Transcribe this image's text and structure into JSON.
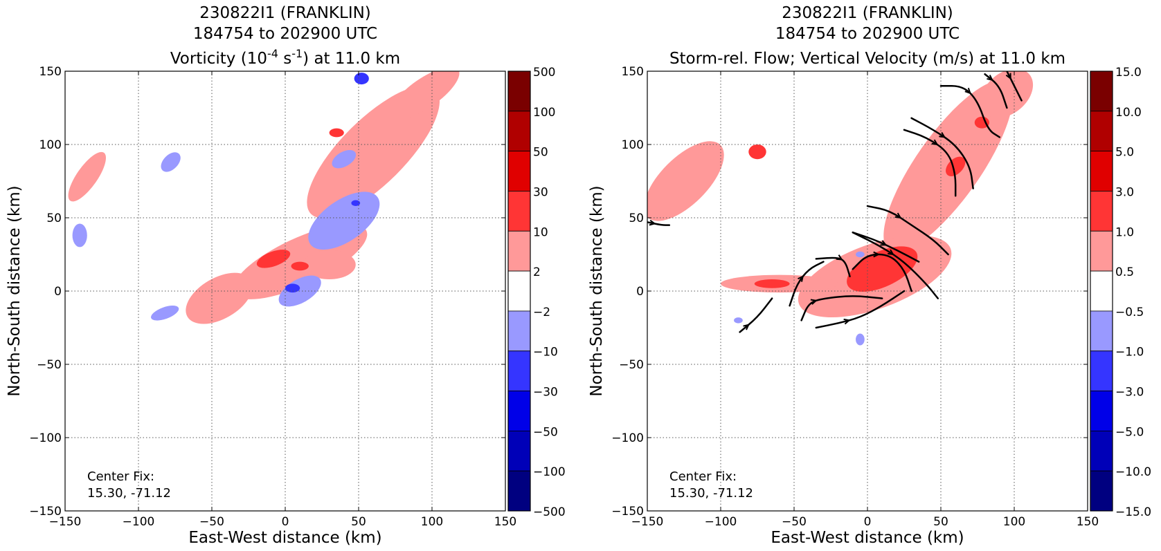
{
  "chart_data": [
    {
      "type": "heatmap",
      "title_lines": [
        "230822I1 (FRANKLIN)",
        "184754 to 202900 UTC"
      ],
      "title_var": "Vorticity (10",
      "title_exp1": "-4",
      "title_unit": " s",
      "title_exp2": "-1",
      "title_tail": ") at 11.0 km",
      "xlabel": "East-West distance (km)",
      "ylabel": "North-South distance (km)",
      "xlim": [
        -150,
        150
      ],
      "ylim": [
        -150,
        150
      ],
      "xticks": [
        "−150",
        "−100",
        "−50",
        "0",
        "50",
        "100",
        "150"
      ],
      "yticks": [
        "−150",
        "−100",
        "−50",
        "0",
        "50",
        "100",
        "150"
      ],
      "grid": true,
      "annotation": [
        "Center Fix:",
        "15.30, -71.12"
      ],
      "colorbar_labels": [
        "500",
        "100",
        "50",
        "30",
        "10",
        "2",
        "−2",
        "−10",
        "−30",
        "−50",
        "−100",
        "−500"
      ],
      "colorbar_colors": [
        "#7a0000",
        "#b00000",
        "#e00000",
        "#ff3535",
        "#ff9999",
        "#ffffff",
        "#9999ff",
        "#3535ff",
        "#0000e8",
        "#0000b8",
        "#000080"
      ],
      "regions": [
        {
          "fill": "#ff9999",
          "cx": 60,
          "cy": 95,
          "rx": 60,
          "ry": 22,
          "rot": -45
        },
        {
          "fill": "#ff9999",
          "cx": 95,
          "cy": 135,
          "rx": 28,
          "ry": 10,
          "rot": -35
        },
        {
          "fill": "#ff9999",
          "cx": 10,
          "cy": 20,
          "rx": 50,
          "ry": 16,
          "rot": -25
        },
        {
          "fill": "#ff9999",
          "cx": -45,
          "cy": -5,
          "rx": 25,
          "ry": 14,
          "rot": -30
        },
        {
          "fill": "#ff9999",
          "cx": -135,
          "cy": 78,
          "rx": 20,
          "ry": 7,
          "rot": -55
        },
        {
          "fill": "#ff9999",
          "cx": 30,
          "cy": 18,
          "rx": 18,
          "ry": 10,
          "rot": 0
        },
        {
          "fill": "#ff3535",
          "cx": -8,
          "cy": 22,
          "rx": 12,
          "ry": 5,
          "rot": -20
        },
        {
          "fill": "#ff3535",
          "cx": 10,
          "cy": 17,
          "rx": 6,
          "ry": 3,
          "rot": 0
        },
        {
          "fill": "#ff3535",
          "cx": 35,
          "cy": 108,
          "rx": 5,
          "ry": 3,
          "rot": 0
        },
        {
          "fill": "#9999ff",
          "cx": 40,
          "cy": 48,
          "rx": 28,
          "ry": 14,
          "rot": -35
        },
        {
          "fill": "#9999ff",
          "cx": 10,
          "cy": 0,
          "rx": 16,
          "ry": 8,
          "rot": -30
        },
        {
          "fill": "#9999ff",
          "cx": 40,
          "cy": 90,
          "rx": 9,
          "ry": 5,
          "rot": -30
        },
        {
          "fill": "#9999ff",
          "cx": -78,
          "cy": 88,
          "rx": 8,
          "ry": 5,
          "rot": -45
        },
        {
          "fill": "#9999ff",
          "cx": -140,
          "cy": 38,
          "rx": 5,
          "ry": 8,
          "rot": 0
        },
        {
          "fill": "#9999ff",
          "cx": -82,
          "cy": -15,
          "rx": 10,
          "ry": 4,
          "rot": -20
        },
        {
          "fill": "#3535ff",
          "cx": 52,
          "cy": 145,
          "rx": 5,
          "ry": 4,
          "rot": 0
        },
        {
          "fill": "#3535ff",
          "cx": 5,
          "cy": 2,
          "rx": 5,
          "ry": 3,
          "rot": 0
        },
        {
          "fill": "#3535ff",
          "cx": 48,
          "cy": 60,
          "rx": 3,
          "ry": 2,
          "rot": 0
        }
      ]
    },
    {
      "type": "heatmap",
      "title_lines": [
        "230822I1 (FRANKLIN)",
        "184754 to 202900 UTC",
        "Storm-rel. Flow; Vertical Velocity (m/s) at 11.0 km"
      ],
      "xlabel": "East-West distance (km)",
      "ylabel": "North-South distance (km)",
      "xlim": [
        -150,
        150
      ],
      "ylim": [
        -150,
        150
      ],
      "xticks": [
        "−150",
        "−100",
        "−50",
        "0",
        "50",
        "100",
        "150"
      ],
      "yticks": [
        "−150",
        "−100",
        "−50",
        "0",
        "50",
        "100",
        "150"
      ],
      "grid": true,
      "annotation": [
        "Center Fix:",
        "15.30, -71.12"
      ],
      "colorbar_labels": [
        "15.0",
        "10.0",
        "5.0",
        "3.0",
        "1.0",
        "0.5",
        "−0.5",
        "−1.0",
        "−3.0",
        "−5.0",
        "−10.0",
        "−15.0"
      ],
      "colorbar_colors": [
        "#7a0000",
        "#b00000",
        "#e00000",
        "#ff3535",
        "#ff9999",
        "#ffffff",
        "#9999ff",
        "#3535ff",
        "#0000e8",
        "#0000b8",
        "#000080"
      ],
      "regions": [
        {
          "fill": "#ff9999",
          "cx": 55,
          "cy": 85,
          "rx": 70,
          "ry": 22,
          "rot": -55
        },
        {
          "fill": "#ff9999",
          "cx": 5,
          "cy": 10,
          "rx": 55,
          "ry": 22,
          "rot": -20
        },
        {
          "fill": "#ff9999",
          "cx": -125,
          "cy": 75,
          "rx": 35,
          "ry": 16,
          "rot": -45
        },
        {
          "fill": "#ff9999",
          "cx": -60,
          "cy": 5,
          "rx": 40,
          "ry": 6,
          "rot": 0
        },
        {
          "fill": "#ff9999",
          "cx": 95,
          "cy": 135,
          "rx": 20,
          "ry": 14,
          "rot": -40
        },
        {
          "fill": "#ff3535",
          "cx": 10,
          "cy": 15,
          "rx": 26,
          "ry": 12,
          "rot": -25
        },
        {
          "fill": "#ff3535",
          "cx": -65,
          "cy": 5,
          "rx": 12,
          "ry": 3,
          "rot": 0
        },
        {
          "fill": "#ff3535",
          "cx": -75,
          "cy": 95,
          "rx": 6,
          "ry": 5,
          "rot": 0
        },
        {
          "fill": "#ff3535",
          "cx": 60,
          "cy": 85,
          "rx": 8,
          "ry": 5,
          "rot": -45
        },
        {
          "fill": "#ff3535",
          "cx": 78,
          "cy": 115,
          "rx": 5,
          "ry": 4,
          "rot": 0
        },
        {
          "fill": "#9999ff",
          "cx": -5,
          "cy": 25,
          "rx": 3,
          "ry": 2,
          "rot": 0
        },
        {
          "fill": "#9999ff",
          "cx": -5,
          "cy": -33,
          "rx": 3,
          "ry": 4,
          "rot": 0
        },
        {
          "fill": "#9999ff",
          "cx": -88,
          "cy": -20,
          "rx": 3,
          "ry": 2,
          "rot": 0
        }
      ],
      "streamlines": [
        [
          [
            -87,
            -28
          ],
          [
            -75,
            -18
          ],
          [
            -65,
            -5
          ]
        ],
        [
          [
            -53,
            -10
          ],
          [
            -48,
            5
          ],
          [
            -40,
            15
          ],
          [
            -30,
            20
          ]
        ],
        [
          [
            -45,
            -20
          ],
          [
            -40,
            -8
          ],
          [
            -30,
            -5
          ],
          [
            -10,
            -3
          ],
          [
            10,
            -5
          ]
        ],
        [
          [
            -35,
            -25
          ],
          [
            -20,
            -22
          ],
          [
            -5,
            -18
          ],
          [
            10,
            -10
          ],
          [
            25,
            0
          ]
        ],
        [
          [
            -35,
            22
          ],
          [
            -20,
            23
          ],
          [
            -15,
            20
          ],
          [
            -12,
            10
          ]
        ],
        [
          [
            -10,
            15
          ],
          [
            0,
            25
          ],
          [
            15,
            25
          ],
          [
            25,
            15
          ],
          [
            30,
            0
          ]
        ],
        [
          [
            -10,
            40
          ],
          [
            10,
            30
          ],
          [
            25,
            20
          ],
          [
            40,
            5
          ],
          [
            48,
            -5
          ]
        ],
        [
          [
            0,
            58
          ],
          [
            15,
            55
          ],
          [
            30,
            45
          ],
          [
            45,
            35
          ],
          [
            55,
            25
          ]
        ],
        [
          [
            -10,
            40
          ],
          [
            5,
            35
          ],
          [
            20,
            28
          ],
          [
            35,
            20
          ]
        ],
        [
          [
            25,
            110
          ],
          [
            40,
            105
          ],
          [
            55,
            95
          ],
          [
            60,
            80
          ],
          [
            60,
            65
          ]
        ],
        [
          [
            30,
            118
          ],
          [
            45,
            110
          ],
          [
            60,
            100
          ],
          [
            70,
            85
          ],
          [
            72,
            70
          ]
        ],
        [
          [
            50,
            140
          ],
          [
            65,
            140
          ],
          [
            75,
            130
          ],
          [
            82,
            110
          ],
          [
            90,
            105
          ]
        ],
        [
          [
            80,
            148
          ],
          [
            90,
            140
          ],
          [
            95,
            125
          ]
        ],
        [
          [
            95,
            150
          ],
          [
            100,
            140
          ],
          [
            105,
            130
          ]
        ],
        [
          [
            -150,
            47
          ],
          [
            -140,
            45
          ],
          [
            -135,
            45
          ]
        ]
      ]
    }
  ]
}
